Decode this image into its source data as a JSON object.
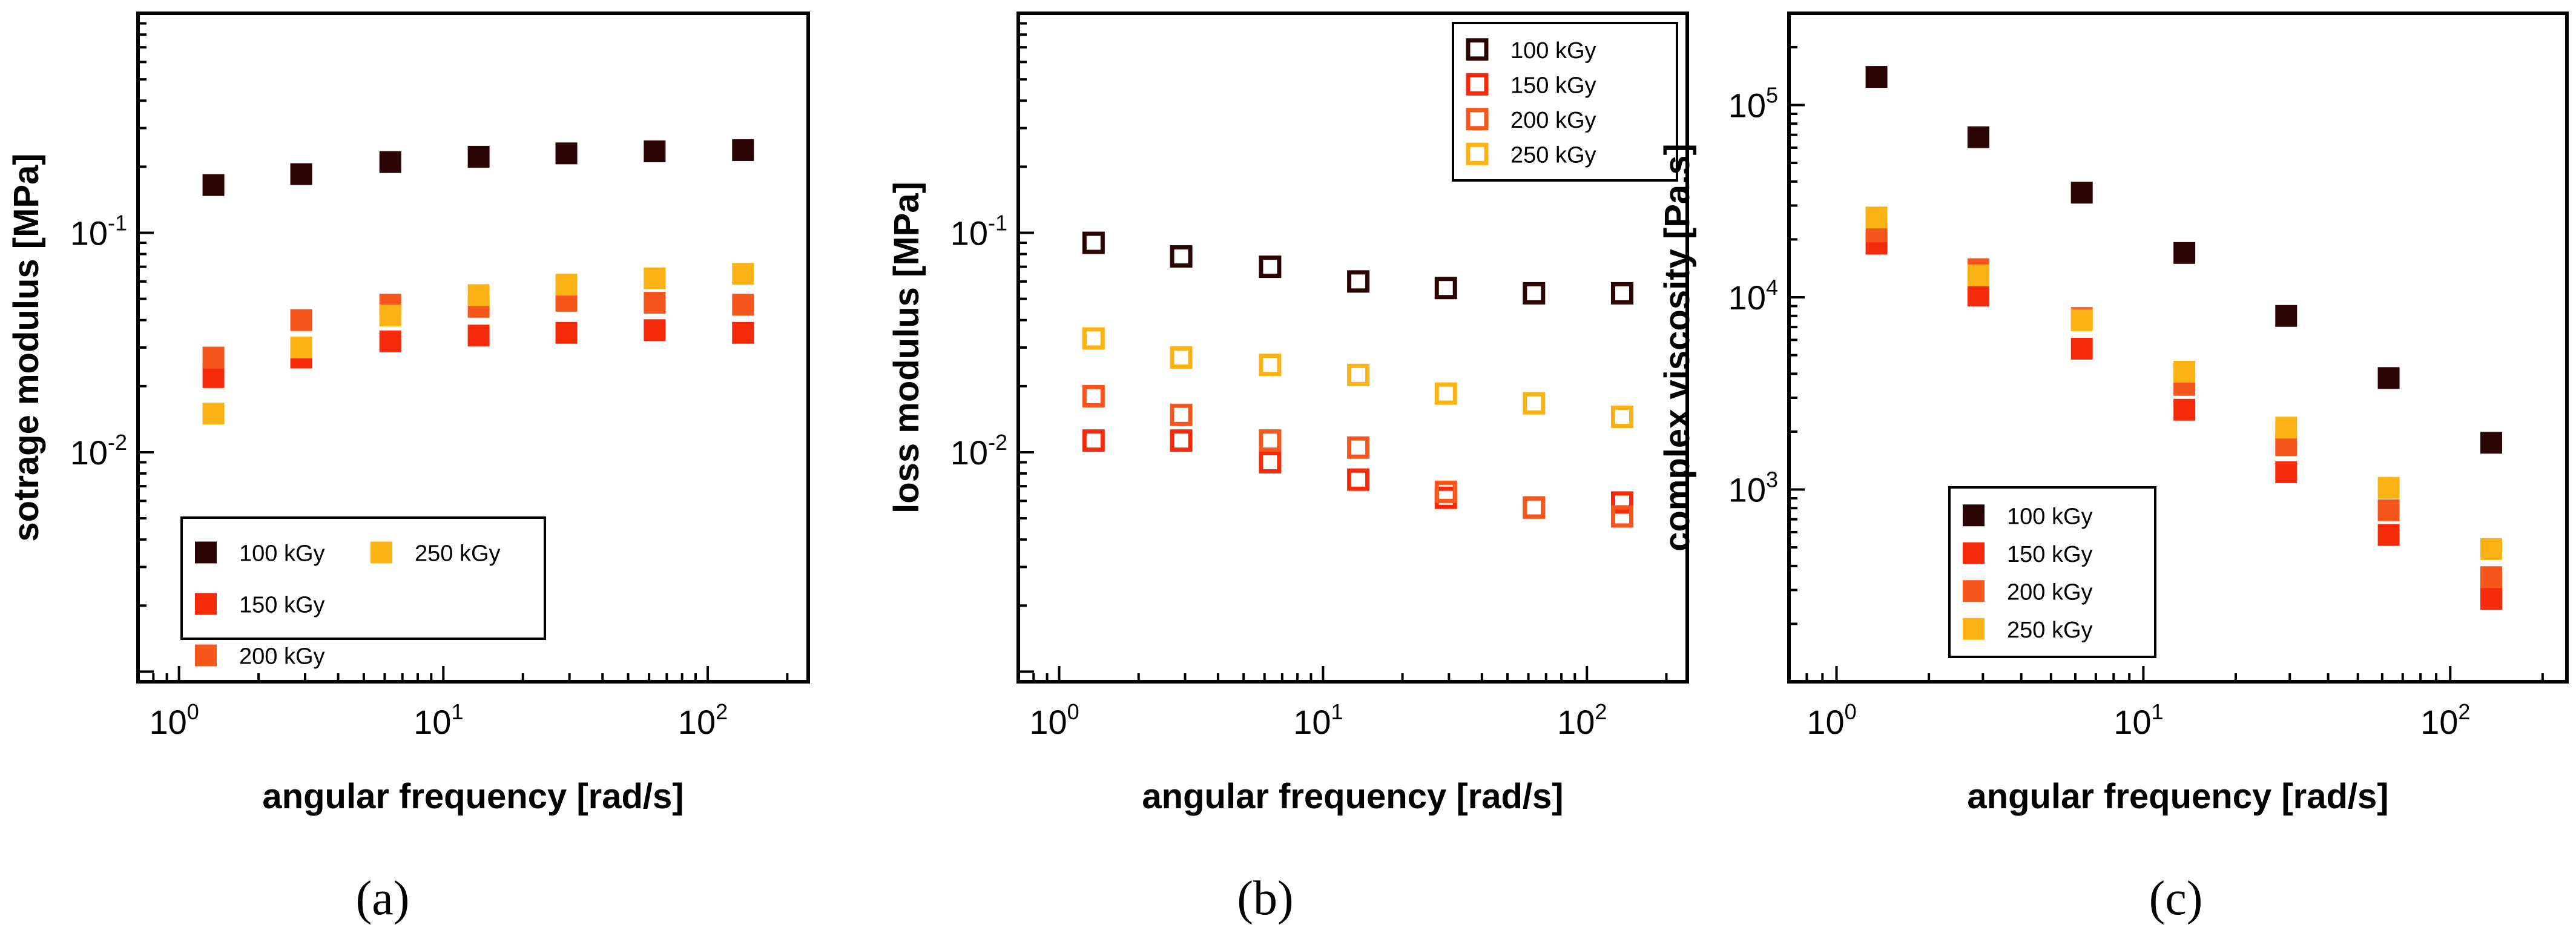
{
  "chart_data": [
    {
      "type": "scatter",
      "panel_label": "(a)",
      "xlabel": "angular frequency [rad/s]",
      "ylabel": "sotrage modulus [MPa]",
      "xscale": "log",
      "yscale": "log",
      "xlim": [
        0.7,
        240
      ],
      "ylim": [
        0.0009,
        1.0
      ],
      "xticks": [
        {
          "base": "10",
          "exp": "0",
          "value": 1
        },
        {
          "base": "10",
          "exp": "1",
          "value": 10
        },
        {
          "base": "10",
          "exp": "2",
          "value": 100
        }
      ],
      "yticks": [
        {
          "base": "10",
          "exp": "-1",
          "value": 0.1
        },
        {
          "base": "10",
          "exp": "-2",
          "value": 0.01
        }
      ],
      "marker": "filled-square",
      "legend_position": "bottom-left",
      "legend_columns": 2,
      "x": [
        1.35,
        2.9,
        6.3,
        13.6,
        29.2,
        63,
        136
      ],
      "series": [
        {
          "name": "100 kGy",
          "color": "#2b0404",
          "values": [
            0.165,
            0.185,
            0.21,
            0.222,
            0.23,
            0.235,
            0.238
          ]
        },
        {
          "name": "150 kGy",
          "color": "#f52a0a",
          "values": [
            0.022,
            0.027,
            0.032,
            0.034,
            0.035,
            0.036,
            0.035
          ]
        },
        {
          "name": "200 kGy",
          "color": "#f4561c",
          "values": [
            0.027,
            0.04,
            0.047,
            0.046,
            0.049,
            0.048,
            0.047
          ]
        },
        {
          "name": "250 kGy",
          "color": "#fbb214",
          "values": [
            0.015,
            0.03,
            0.042,
            0.052,
            0.058,
            0.062,
            0.065
          ]
        }
      ]
    },
    {
      "type": "scatter",
      "panel_label": "(b)",
      "xlabel": "angular frequency [rad/s]",
      "ylabel": "loss modulus [MPa]",
      "xscale": "log",
      "yscale": "log",
      "xlim": [
        0.7,
        240
      ],
      "ylim": [
        0.0009,
        1.0
      ],
      "xticks": [
        {
          "base": "10",
          "exp": "0",
          "value": 1
        },
        {
          "base": "10",
          "exp": "1",
          "value": 10
        },
        {
          "base": "10",
          "exp": "2",
          "value": 100
        }
      ],
      "yticks": [
        {
          "base": "10",
          "exp": "-1",
          "value": 0.1
        },
        {
          "base": "10",
          "exp": "-2",
          "value": 0.01
        }
      ],
      "marker": "open-square",
      "legend_position": "top-right",
      "legend_columns": 1,
      "x": [
        1.35,
        2.9,
        6.3,
        13.6,
        29.2,
        63,
        136
      ],
      "series": [
        {
          "name": "100 kGy",
          "color": "#2b0404",
          "values": [
            0.09,
            0.078,
            0.07,
            0.06,
            0.056,
            0.053,
            0.053
          ]
        },
        {
          "name": "150 kGy",
          "color": "#f52a0a",
          "values": [
            0.0113,
            0.0113,
            0.009,
            0.0075,
            0.0062,
            0.0056,
            0.0059
          ]
        },
        {
          "name": "200 kGy",
          "color": "#f4561c",
          "values": [
            0.018,
            0.0148,
            0.0113,
            0.0105,
            0.0066,
            0.0056,
            0.0051
          ]
        },
        {
          "name": "250 kGy",
          "color": "#fbb214",
          "values": [
            0.033,
            0.027,
            0.025,
            0.0225,
            0.0185,
            0.0167,
            0.0145
          ]
        }
      ]
    },
    {
      "type": "scatter",
      "panel_label": "(c)",
      "xlabel": "angular frequency [rad/s]",
      "ylabel": "complex viscosity [Pa.s]",
      "xscale": "log",
      "yscale": "log",
      "xlim": [
        0.7,
        240
      ],
      "ylim": [
        100,
        300000
      ],
      "xticks": [
        {
          "base": "10",
          "exp": "0",
          "value": 1
        },
        {
          "base": "10",
          "exp": "1",
          "value": 10
        },
        {
          "base": "10",
          "exp": "2",
          "value": 100
        }
      ],
      "yticks": [
        {
          "base": "10",
          "exp": "5",
          "value": 100000
        },
        {
          "base": "10",
          "exp": "4",
          "value": 10000
        },
        {
          "base": "10",
          "exp": "3",
          "value": 1000
        }
      ],
      "marker": "filled-square",
      "legend_position": "bottom-left",
      "legend_columns": 1,
      "x": [
        1.35,
        2.9,
        6.3,
        13.6,
        29.2,
        63,
        136
      ],
      "series": [
        {
          "name": "100 kGy",
          "color": "#2b0404",
          "values": [
            140000,
            68000,
            35000,
            17000,
            8000,
            3800,
            1750
          ]
        },
        {
          "name": "150 kGy",
          "color": "#f52a0a",
          "values": [
            19000,
            10200,
            5400,
            2600,
            1230,
            580,
            270
          ]
        },
        {
          "name": "200 kGy",
          "color": "#f4561c",
          "values": [
            22000,
            14000,
            7800,
            3500,
            1700,
            780,
            350
          ]
        },
        {
          "name": "250 kGy",
          "color": "#fbb214",
          "values": [
            26000,
            13000,
            7600,
            4100,
            2100,
            1020,
            490
          ]
        }
      ]
    }
  ]
}
